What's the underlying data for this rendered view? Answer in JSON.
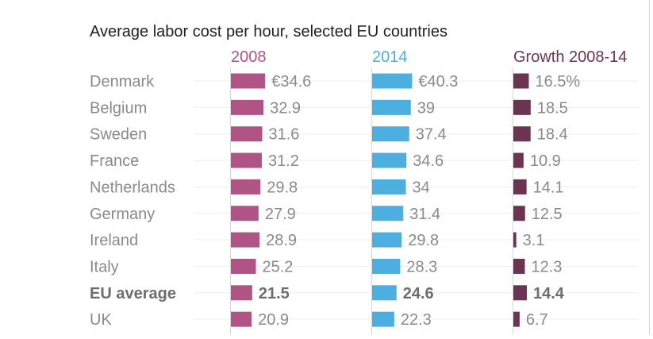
{
  "chart_data": {
    "type": "bar",
    "title": "Average labor cost per hour, selected EU countries",
    "categories": [
      "Denmark",
      "Belgium",
      "Sweden",
      "France",
      "Netherlands",
      "Germany",
      "Ireland",
      "Italy",
      "EU average",
      "UK"
    ],
    "emphasized_category": "EU average",
    "series": [
      {
        "name": "2008",
        "color": "#b05485",
        "values": [
          34.6,
          32.9,
          31.6,
          31.2,
          29.8,
          27.9,
          28.9,
          25.2,
          21.5,
          20.9
        ],
        "labels": [
          "€34.6",
          "32.9",
          "31.6",
          "31.2",
          "29.8",
          "27.9",
          "28.9",
          "25.2",
          "21.5",
          "20.9"
        ]
      },
      {
        "name": "2014",
        "color": "#4daee0",
        "values": [
          40.3,
          39,
          37.4,
          34.6,
          34,
          31.4,
          29.8,
          28.3,
          24.6,
          22.3
        ],
        "labels": [
          "€40.3",
          "39",
          "37.4",
          "34.6",
          "34",
          "31.4",
          "29.8",
          "28.3",
          "24.6",
          "22.3"
        ]
      },
      {
        "name": "Growth 2008-14",
        "color": "#6b3552",
        "values": [
          16.5,
          18.5,
          18.4,
          10.9,
          14.1,
          12.5,
          3.1,
          12.3,
          14.4,
          6.7
        ],
        "labels": [
          "16.5%",
          "18.5",
          "18.4",
          "10.9",
          "14.1",
          "12.5",
          "3.1",
          "12.3",
          "14.4",
          "6.7"
        ]
      }
    ],
    "grid": false,
    "legend": "top"
  },
  "style": {
    "title_color": "#222222",
    "category_color": "#8a8a8a",
    "value_label_color": "#8a8a8a",
    "emphasis_color": "#6d6d6d",
    "axis_line_color": "#d8d8d8",
    "row_separator_color": "#eeeeee"
  }
}
